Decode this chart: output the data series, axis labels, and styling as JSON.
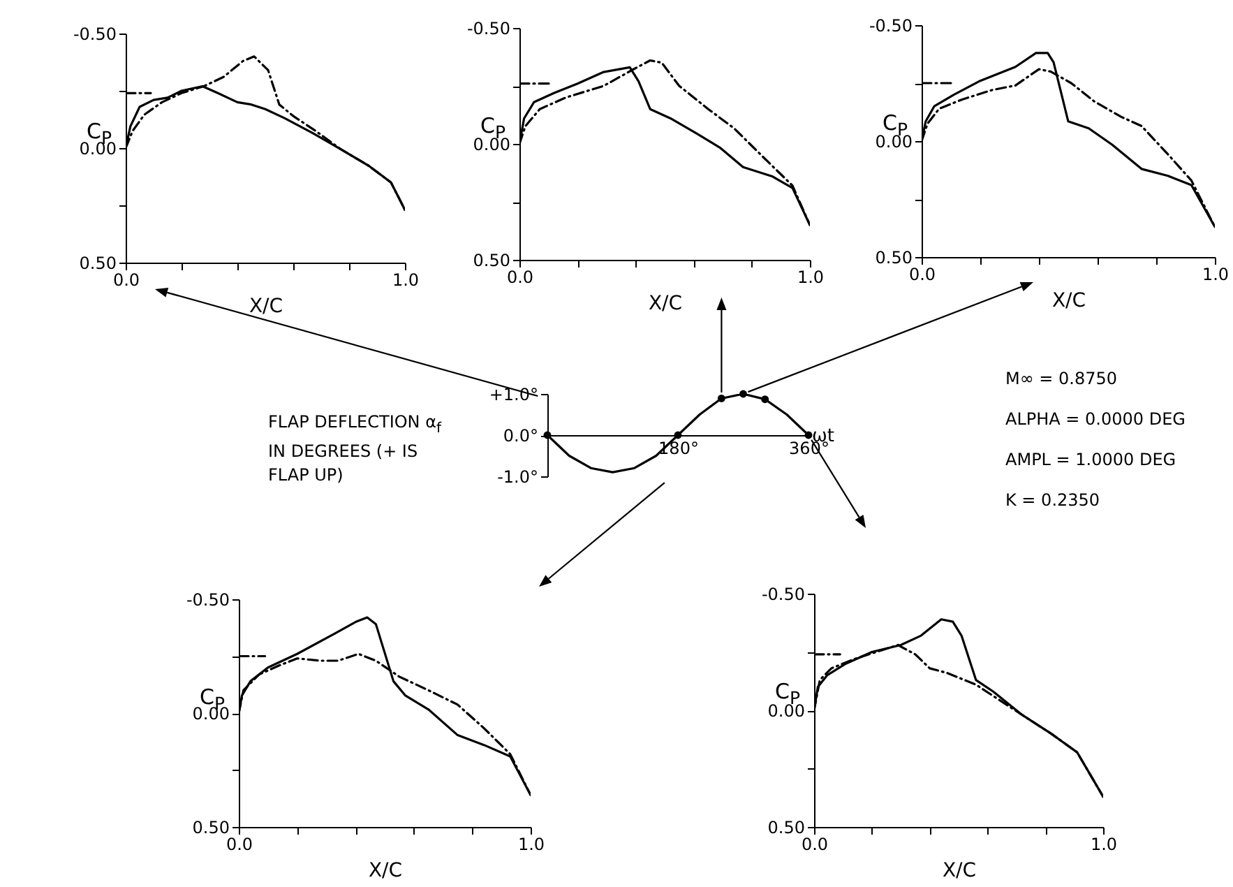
{
  "chart_data": [
    {
      "type": "line",
      "ylabel": "C$_{P}$",
      "xlabel": "X/C",
      "xlim": [
        0,
        1
      ],
      "ylim": [
        0.5,
        -0.5
      ],
      "xticks": [
        {
          "value": 0,
          "label": "0.0"
        },
        {
          "value": 0.2,
          "label": null
        },
        {
          "value": 0.4,
          "label": null
        },
        {
          "value": 0.6,
          "label": null
        },
        {
          "value": 0.8,
          "label": null
        },
        {
          "value": 1,
          "label": "1.0"
        }
      ],
      "yticks": [
        {
          "value": -0.5,
          "label": "-0.50"
        },
        {
          "value": -0.25,
          "label": null
        },
        {
          "value": 0,
          "label": "0.00"
        },
        {
          "value": 0.25,
          "label": null
        },
        {
          "value": 0.5,
          "label": "0.50"
        }
      ],
      "series": [
        {
          "color": "#000000",
          "line_style": "solid",
          "x": [
            0,
            0.017,
            0.05,
            0.1,
            0.15,
            0.2,
            0.275,
            0.33,
            0.4,
            0.45,
            0.5,
            0.57,
            0.67,
            0.77,
            0.87,
            0.95,
            1
          ],
          "values": [
            0,
            -0.095,
            -0.18,
            -0.21,
            -0.22,
            -0.25,
            -0.27,
            -0.24,
            -0.2,
            -0.19,
            -0.17,
            -0.13,
            -0.065,
            0.005,
            0.077,
            0.15,
            0.27
          ]
        },
        {
          "color": "#000000",
          "line_style": "dashed",
          "x": [
            0,
            0.025,
            0.067,
            0.13,
            0.2,
            0.28,
            0.35,
            0.42,
            0.46,
            0.51,
            0.55,
            0.6,
            0.68,
            0.77,
            0.87,
            0.95,
            1
          ],
          "values": [
            0,
            -0.075,
            -0.146,
            -0.2,
            -0.24,
            -0.27,
            -0.31,
            -0.38,
            -0.4,
            -0.34,
            -0.19,
            -0.14,
            -0.075,
            0.005,
            0.077,
            0.15,
            0.27
          ]
        },
        {
          "color": "#000000",
          "line_style": "dashed",
          "x": [
            0,
            0.09
          ],
          "values": [
            -0.24,
            -0.24
          ]
        }
      ]
    },
    {
      "type": "line",
      "ylabel": "C$_{P}$",
      "xlabel": "X/C",
      "xlim": [
        0,
        1
      ],
      "ylim": [
        0.5,
        -0.5
      ],
      "xticks": [
        {
          "value": 0,
          "label": "0.0"
        },
        {
          "value": 0.2,
          "label": null
        },
        {
          "value": 0.4,
          "label": null
        },
        {
          "value": 0.6,
          "label": null
        },
        {
          "value": 0.8,
          "label": null
        },
        {
          "value": 1,
          "label": "1.0"
        }
      ],
      "yticks": [
        {
          "value": -0.5,
          "label": "-0.50"
        },
        {
          "value": -0.25,
          "label": null
        },
        {
          "value": 0,
          "label": "0.00"
        },
        {
          "value": 0.25,
          "label": null
        },
        {
          "value": 0.5,
          "label": "0.50"
        }
      ],
      "series": [
        {
          "color": "#000000",
          "line_style": "solid",
          "x": [
            0,
            0.016,
            0.05,
            0.12,
            0.2,
            0.29,
            0.38,
            0.41,
            0.45,
            0.52,
            0.61,
            0.69,
            0.77,
            0.87,
            0.94,
            1
          ],
          "values": [
            0,
            -0.11,
            -0.18,
            -0.22,
            -0.26,
            -0.31,
            -0.33,
            -0.27,
            -0.15,
            -0.11,
            -0.045,
            0.016,
            0.1,
            0.14,
            0.19,
            0.35
          ]
        },
        {
          "color": "#000000",
          "line_style": "dashed",
          "x": [
            0,
            0.02,
            0.07,
            0.16,
            0.29,
            0.39,
            0.45,
            0.49,
            0.55,
            0.65,
            0.74,
            0.84,
            0.94,
            1
          ],
          "values": [
            0,
            -0.076,
            -0.15,
            -0.2,
            -0.25,
            -0.32,
            -0.36,
            -0.35,
            -0.25,
            -0.15,
            -0.066,
            0.058,
            0.18,
            0.35
          ]
        },
        {
          "color": "#000000",
          "line_style": "dashed",
          "x": [
            0,
            0.11
          ],
          "values": [
            -0.26,
            -0.26
          ]
        }
      ]
    },
    {
      "type": "line",
      "ylabel": "C$_{P}$",
      "xlabel": "X/C",
      "xlim": [
        0,
        1
      ],
      "ylim": [
        0.5,
        -0.5
      ],
      "xticks": [
        {
          "value": 0,
          "label": "0.0"
        },
        {
          "value": 0.2,
          "label": null
        },
        {
          "value": 0.4,
          "label": null
        },
        {
          "value": 0.6,
          "label": null
        },
        {
          "value": 0.8,
          "label": null
        },
        {
          "value": 1,
          "label": "1.0"
        }
      ],
      "yticks": [
        {
          "value": -0.5,
          "label": "-0.50"
        },
        {
          "value": -0.25,
          "label": null
        },
        {
          "value": 0,
          "label": "0.00"
        },
        {
          "value": 0.25,
          "label": null
        },
        {
          "value": 0.5,
          "label": "0.50"
        }
      ],
      "series": [
        {
          "color": "#000000",
          "line_style": "solid",
          "x": [
            0,
            0.014,
            0.043,
            0.11,
            0.2,
            0.32,
            0.39,
            0.43,
            0.45,
            0.5,
            0.57,
            0.65,
            0.75,
            0.84,
            0.92,
            1
          ],
          "values": [
            0,
            -0.085,
            -0.15,
            -0.2,
            -0.26,
            -0.32,
            -0.38,
            -0.38,
            -0.34,
            -0.085,
            -0.055,
            0.016,
            0.12,
            0.15,
            0.19,
            0.37
          ]
        },
        {
          "color": "#000000",
          "line_style": "dashed",
          "x": [
            0,
            0.02,
            0.06,
            0.14,
            0.24,
            0.32,
            0.4,
            0.44,
            0.51,
            0.59,
            0.68,
            0.75,
            0.84,
            0.92,
            1
          ],
          "values": [
            0,
            -0.075,
            -0.14,
            -0.18,
            -0.22,
            -0.24,
            -0.31,
            -0.3,
            -0.25,
            -0.17,
            -0.105,
            -0.065,
            0.057,
            0.17,
            0.37
          ]
        },
        {
          "color": "#000000",
          "line_style": "dashed",
          "x": [
            0,
            0.1
          ],
          "values": [
            -0.25,
            -0.25
          ]
        }
      ]
    },
    {
      "type": "line",
      "ylabel": "FLAP DEFLECTION α$_{f}$ IN DEGREES (+ IS FLAP UP)",
      "xlabel": "ωt",
      "xlim": [
        0,
        360
      ],
      "ylim": [
        -1,
        1
      ],
      "xticks": [
        {
          "value": 180,
          "label": "180°"
        },
        {
          "value": 360,
          "label": "360°"
        }
      ],
      "yticks": [
        {
          "value": -1,
          "label": "-1.0°"
        },
        {
          "value": 0,
          "label": "0.0°"
        },
        {
          "value": 1,
          "label": "+1.0°"
        }
      ],
      "series": [
        {
          "color": "#000000",
          "line_style": "solid",
          "x": [
            0,
            30,
            60,
            90,
            120,
            150,
            180,
            210,
            240,
            270,
            300,
            330,
            360
          ],
          "values": [
            0,
            -0.5,
            -0.8,
            -0.9,
            -0.8,
            -0.5,
            0,
            0.5,
            0.89,
            1,
            0.87,
            0.5,
            0
          ]
        },
        {
          "type": "scatter",
          "marker": "circle",
          "color": "#000000",
          "x": [
            0,
            180,
            240,
            270,
            300,
            360
          ],
          "values": [
            0,
            0,
            0.89,
            1,
            0.87,
            0
          ]
        }
      ],
      "annotations": [
        "M∞ = 0.8750",
        "ALPHA = 0.0000 DEG",
        "AMPL = 1.0000 DEG",
        "K = 0.2350"
      ]
    },
    {
      "type": "line",
      "ylabel": "C$_{P}$",
      "xlabel": "X/C",
      "xlim": [
        0,
        1
      ],
      "ylim": [
        0.5,
        -0.5
      ],
      "xticks": [
        {
          "value": 0,
          "label": "0.0"
        },
        {
          "value": 0.2,
          "label": null
        },
        {
          "value": 0.4,
          "label": null
        },
        {
          "value": 0.6,
          "label": null
        },
        {
          "value": 0.8,
          "label": null
        },
        {
          "value": 1,
          "label": "1.0"
        }
      ],
      "yticks": [
        {
          "value": -0.5,
          "label": "-0.50"
        },
        {
          "value": -0.25,
          "label": null
        },
        {
          "value": 0,
          "label": "0.00"
        },
        {
          "value": 0.25,
          "label": null
        },
        {
          "value": 0.5,
          "label": "0.50"
        }
      ],
      "series": [
        {
          "color": "#000000",
          "line_style": "solid",
          "x": [
            0,
            0.011,
            0.04,
            0.1,
            0.2,
            0.33,
            0.4,
            0.44,
            0.47,
            0.53,
            0.57,
            0.65,
            0.75,
            0.84,
            0.93,
            1
          ],
          "values": [
            0,
            -0.078,
            -0.14,
            -0.2,
            -0.26,
            -0.35,
            -0.4,
            -0.42,
            -0.39,
            -0.14,
            -0.078,
            -0.016,
            0.097,
            0.14,
            0.19,
            0.36
          ]
        },
        {
          "color": "#000000",
          "line_style": "dashed",
          "x": [
            0,
            0.016,
            0.07,
            0.14,
            0.2,
            0.28,
            0.34,
            0.41,
            0.47,
            0.55,
            0.65,
            0.75,
            0.84,
            0.93,
            1
          ],
          "values": [
            0,
            -0.1,
            -0.17,
            -0.21,
            -0.24,
            -0.23,
            -0.23,
            -0.26,
            -0.23,
            -0.16,
            -0.1,
            -0.037,
            0.066,
            0.18,
            0.36
          ]
        },
        {
          "color": "#000000",
          "line_style": "dashed",
          "x": [
            0,
            0.09
          ],
          "values": [
            -0.25,
            -0.25
          ]
        }
      ]
    },
    {
      "type": "line",
      "ylabel": "C$_{P}$",
      "xlabel": "X/C",
      "xlim": [
        0,
        1
      ],
      "ylim": [
        0.5,
        -0.5
      ],
      "xticks": [
        {
          "value": 0,
          "label": "0.0"
        },
        {
          "value": 0.2,
          "label": null
        },
        {
          "value": 0.4,
          "label": null
        },
        {
          "value": 0.6,
          "label": null
        },
        {
          "value": 0.8,
          "label": null
        },
        {
          "value": 1,
          "label": "1.0"
        }
      ],
      "yticks": [
        {
          "value": -0.5,
          "label": "-0.50"
        },
        {
          "value": -0.25,
          "label": null
        },
        {
          "value": 0,
          "label": "0.00"
        },
        {
          "value": 0.25,
          "label": null
        },
        {
          "value": 0.5,
          "label": "0.50"
        }
      ],
      "series": [
        {
          "color": "#000000",
          "line_style": "solid",
          "x": [
            0,
            0.013,
            0.045,
            0.11,
            0.2,
            0.3,
            0.37,
            0.44,
            0.48,
            0.51,
            0.56,
            0.62,
            0.72,
            0.82,
            0.91,
            1
          ],
          "values": [
            0,
            -0.1,
            -0.15,
            -0.2,
            -0.25,
            -0.28,
            -0.32,
            -0.39,
            -0.38,
            -0.32,
            -0.13,
            -0.08,
            0.02,
            0.1,
            0.18,
            0.37
          ]
        },
        {
          "color": "#000000",
          "line_style": "dashed",
          "x": [
            0,
            0.02,
            0.06,
            0.14,
            0.24,
            0.29,
            0.35,
            0.4,
            0.46,
            0.56,
            0.72,
            0.82,
            0.91,
            1
          ],
          "values": [
            0,
            -0.13,
            -0.18,
            -0.22,
            -0.26,
            -0.28,
            -0.24,
            -0.18,
            -0.16,
            -0.11,
            0.02,
            0.1,
            0.18,
            0.37
          ]
        },
        {
          "color": "#000000",
          "line_style": "dashed",
          "x": [
            0,
            0.09
          ],
          "values": [
            -0.24,
            -0.24
          ]
        }
      ]
    }
  ]
}
